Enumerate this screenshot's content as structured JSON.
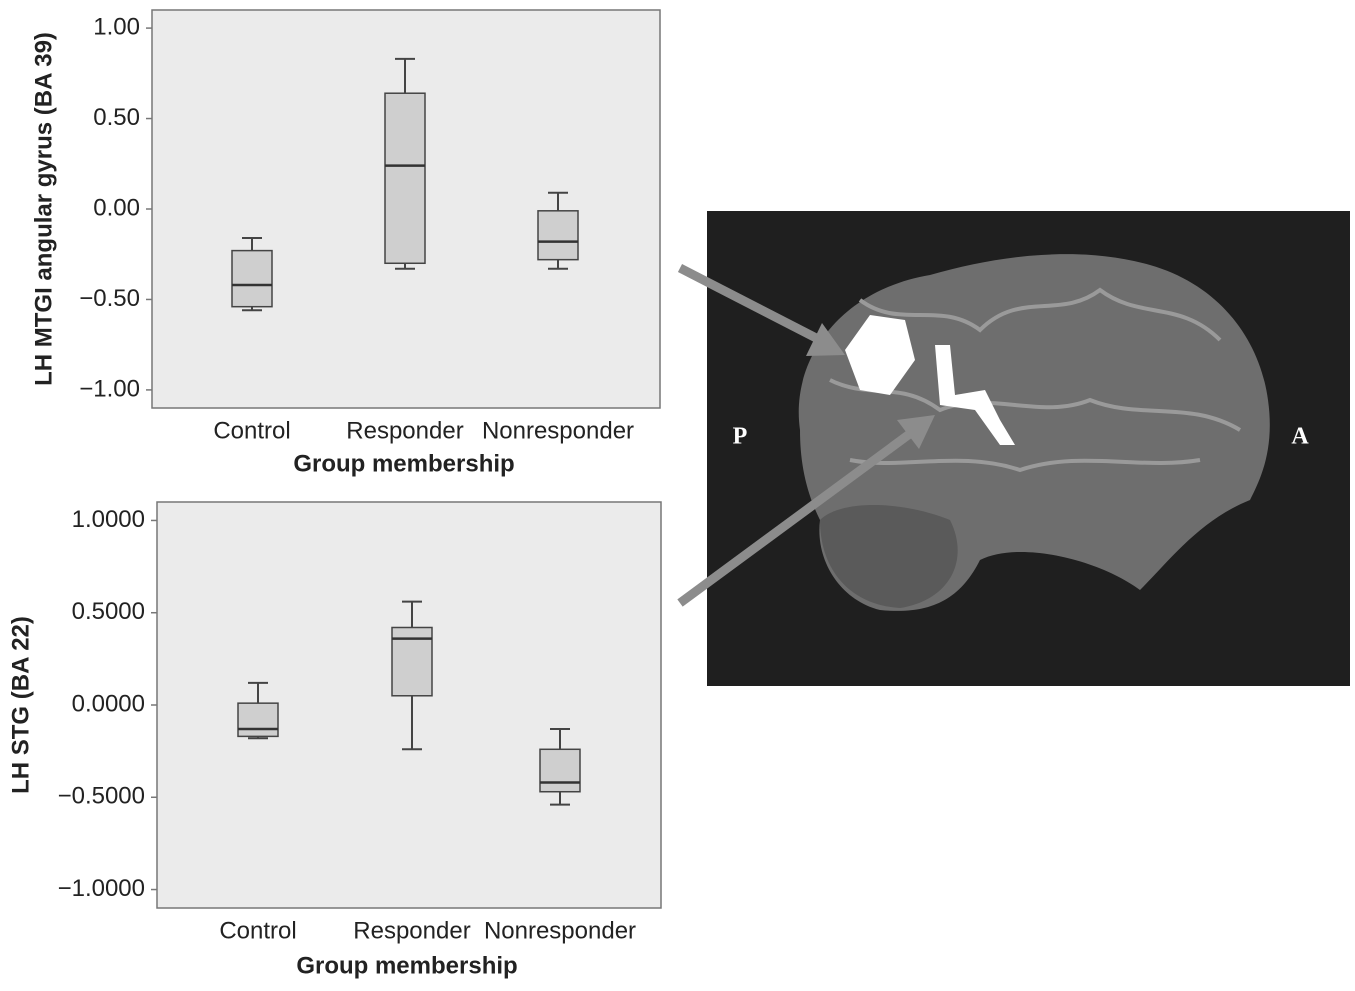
{
  "chart_data": [
    {
      "type": "box",
      "x_label": "Group membership",
      "y_label": "LH MTGI angular gyrus (BA 39)",
      "categories": [
        "Control",
        "Responder",
        "Nonresponder"
      ],
      "min": [
        -0.56,
        -0.33,
        -0.33
      ],
      "q1": [
        -0.54,
        -0.3,
        -0.28
      ],
      "median": [
        -0.42,
        0.24,
        -0.18
      ],
      "q3": [
        -0.23,
        0.64,
        -0.01
      ],
      "max": [
        -0.16,
        0.83,
        0.09
      ],
      "color": "#cfcfcf",
      "ylim": [
        -1.1,
        1.1
      ],
      "yticks": [
        {
          "value": 1,
          "label": "1.00"
        },
        {
          "value": 0.5,
          "label": "0.50"
        },
        {
          "value": 0,
          "label": "0.00"
        },
        {
          "value": -0.5,
          "label": "−0.50"
        },
        {
          "value": -1,
          "label": "−1.00"
        }
      ]
    },
    {
      "type": "box",
      "x_label": "Group membership",
      "y_label": "LH STG (BA 22)",
      "categories": [
        "Control",
        "Responder",
        "Nonresponder"
      ],
      "min": [
        -0.18,
        -0.24,
        -0.54
      ],
      "q1": [
        -0.17,
        0.05,
        -0.47
      ],
      "median": [
        -0.13,
        0.36,
        -0.42
      ],
      "q3": [
        0.01,
        0.42,
        -0.24
      ],
      "max": [
        0.12,
        0.56,
        -0.13
      ],
      "color": "#cfcfcf",
      "ylim": [
        -1.1,
        1.1
      ],
      "yticks": [
        {
          "value": 1,
          "label": "1.0000"
        },
        {
          "value": 0.5,
          "label": "0.5000"
        },
        {
          "value": 0,
          "label": "0.0000"
        },
        {
          "value": -0.5,
          "label": "−0.5000"
        },
        {
          "value": -1,
          "label": "−1.0000"
        }
      ]
    }
  ],
  "image": {
    "left_label": "P",
    "right_label": "A"
  }
}
